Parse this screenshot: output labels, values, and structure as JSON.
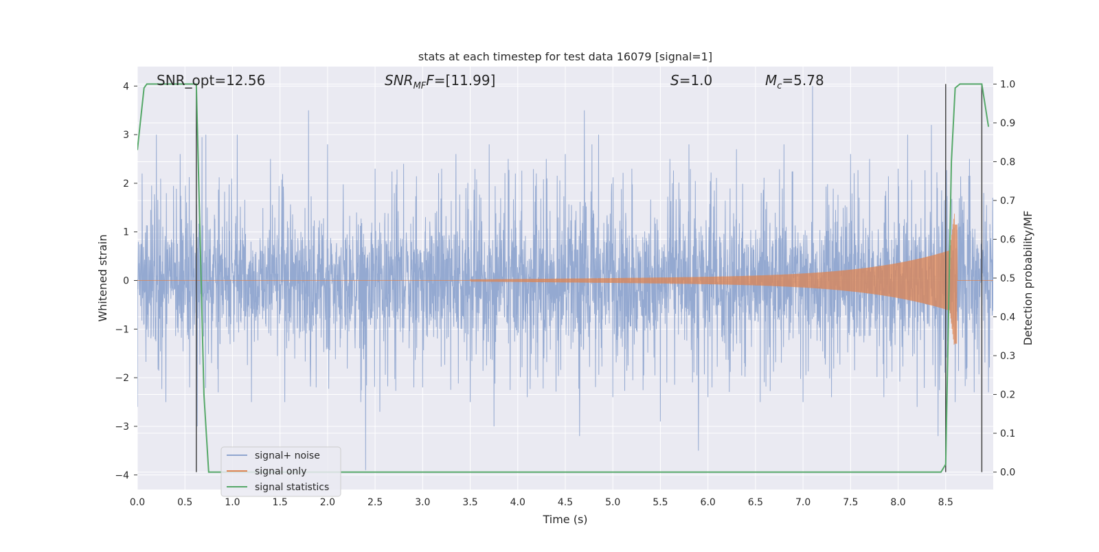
{
  "chart_data": {
    "type": "line",
    "title": "stats at each timestep for test data 16079 [signal=1]",
    "xlabel": "Time (s)",
    "ylabel": "Whitened strain",
    "ylabel_right": "Detection probability/MF",
    "xlim": [
      0.0,
      9.0
    ],
    "ylim": [
      -4.3,
      4.4
    ],
    "ylim_right": [
      -0.045,
      1.045
    ],
    "x_ticks": [
      0.0,
      0.5,
      1.0,
      1.5,
      2.0,
      2.5,
      3.0,
      3.5,
      4.0,
      4.5,
      5.0,
      5.5,
      6.0,
      6.5,
      7.0,
      7.5,
      8.0,
      8.5
    ],
    "x_tick_labels": [
      "0.0",
      "0.5",
      "1.0",
      "1.5",
      "2.0",
      "2.5",
      "3.0",
      "3.5",
      "4.0",
      "4.5",
      "5.0",
      "5.5",
      "6.0",
      "6.5",
      "7.0",
      "7.5",
      "8.0",
      "8.5"
    ],
    "y_ticks": [
      4,
      3,
      2,
      1,
      0,
      -1,
      -2,
      -3,
      -4
    ],
    "y_tick_labels": [
      "4",
      "3",
      "2",
      "1",
      "0",
      "−1",
      "−2",
      "−3",
      "−4"
    ],
    "y_ticks_right": [
      1.0,
      0.9,
      0.8,
      0.7,
      0.6,
      0.5,
      0.4,
      0.3,
      0.2,
      0.1,
      0.0
    ],
    "y_tick_labels_right": [
      "1.0",
      "0.9",
      "0.8",
      "0.7",
      "0.6",
      "0.5",
      "0.4",
      "0.3",
      "0.2",
      "0.1",
      "0.0"
    ],
    "grid": true,
    "annotations": {
      "snr_opt": "SNR_opt=12.56",
      "snr_mf_main": "SNR",
      "snr_mf_sub": "MF",
      "snr_mf_value": "=[11.99]",
      "s_main": "S",
      "s_value": "=1.0",
      "mc_main": "M",
      "mc_sub": "c",
      "mc_value": "=5.78"
    },
    "vertical_markers_x": [
      0.62,
      8.5,
      8.88
    ],
    "legend_position": "lower-left",
    "series": [
      {
        "name": "signal+ noise",
        "color": "#8fa5cf",
        "noise_band": 1.55,
        "peaks": [
          [
            0.0,
            -2.6
          ],
          [
            0.05,
            2.2
          ],
          [
            0.2,
            3.0
          ],
          [
            0.3,
            -2.5
          ],
          [
            0.45,
            2.6
          ],
          [
            0.55,
            -2.2
          ],
          [
            0.63,
            -3.0
          ],
          [
            0.68,
            2.95
          ],
          [
            0.72,
            3.0
          ],
          [
            0.85,
            -2.3
          ],
          [
            1.05,
            3.0
          ],
          [
            1.2,
            -2.5
          ],
          [
            1.4,
            2.5
          ],
          [
            1.55,
            -2.5
          ],
          [
            1.8,
            3.5
          ],
          [
            1.88,
            -2.2
          ],
          [
            2.0,
            2.8
          ],
          [
            2.35,
            -2.5
          ],
          [
            2.4,
            -3.9
          ],
          [
            2.5,
            2.3
          ],
          [
            2.55,
            -2.7
          ],
          [
            2.8,
            2.4
          ],
          [
            3.0,
            -2.2
          ],
          [
            3.2,
            2.3
          ],
          [
            3.35,
            2.6
          ],
          [
            3.5,
            -2.5
          ],
          [
            3.7,
            2.8
          ],
          [
            3.75,
            -3.0
          ],
          [
            3.9,
            2.5
          ],
          [
            4.1,
            -2.4
          ],
          [
            4.3,
            2.5
          ],
          [
            4.5,
            2.6
          ],
          [
            4.65,
            -3.2
          ],
          [
            4.7,
            3.5
          ],
          [
            4.78,
            2.8
          ],
          [
            4.85,
            3.0
          ],
          [
            5.0,
            -2.4
          ],
          [
            5.2,
            2.3
          ],
          [
            5.5,
            -2.9
          ],
          [
            5.6,
            2.5
          ],
          [
            5.8,
            2.8
          ],
          [
            5.9,
            -3.5
          ],
          [
            6.0,
            -2.4
          ],
          [
            6.3,
            2.7
          ],
          [
            6.55,
            -2.5
          ],
          [
            6.8,
            2.8
          ],
          [
            7.0,
            -2.5
          ],
          [
            7.1,
            4.0
          ],
          [
            7.3,
            -2.4
          ],
          [
            7.5,
            2.6
          ],
          [
            7.7,
            2.5
          ],
          [
            7.85,
            -2.4
          ],
          [
            8.0,
            2.3
          ],
          [
            8.1,
            3.0
          ],
          [
            8.2,
            -2.6
          ],
          [
            8.35,
            3.2
          ],
          [
            8.42,
            -3.2
          ],
          [
            8.5,
            3.3
          ],
          [
            8.6,
            -2.5
          ],
          [
            8.75,
            2.5
          ],
          [
            8.8,
            -2.3
          ],
          [
            8.9,
            1.8
          ],
          [
            8.95,
            -2.3
          ]
        ]
      },
      {
        "name": "signal only",
        "color": "#dd8452",
        "chirp_start": 3.5,
        "chirp_end": 8.62,
        "amplitude_max": 1.15,
        "amplitude_min": -1.3
      },
      {
        "name": "signal statistics",
        "color": "#55a868",
        "x": [
          0.0,
          0.07,
          0.1,
          0.2,
          0.3,
          0.4,
          0.5,
          0.6,
          0.62,
          0.66,
          0.7,
          0.75,
          1.0,
          2.0,
          3.0,
          4.0,
          5.0,
          6.0,
          7.0,
          8.0,
          8.15,
          8.45,
          8.5,
          8.56,
          8.6,
          8.65,
          8.8,
          8.88,
          8.95
        ],
        "y": [
          0.83,
          0.99,
          1.0,
          1.0,
          1.0,
          1.0,
          1.0,
          1.0,
          1.0,
          0.6,
          0.2,
          0.0,
          0.0,
          0.0,
          0.0,
          0.0,
          0.0,
          0.0,
          0.0,
          0.0,
          0.0,
          0.0,
          0.02,
          0.8,
          0.99,
          1.0,
          1.0,
          1.0,
          0.89
        ]
      }
    ]
  },
  "colors": {
    "axes_background": "#eaeaf2",
    "grid": "#ffffff",
    "marker_line": "#444444"
  }
}
